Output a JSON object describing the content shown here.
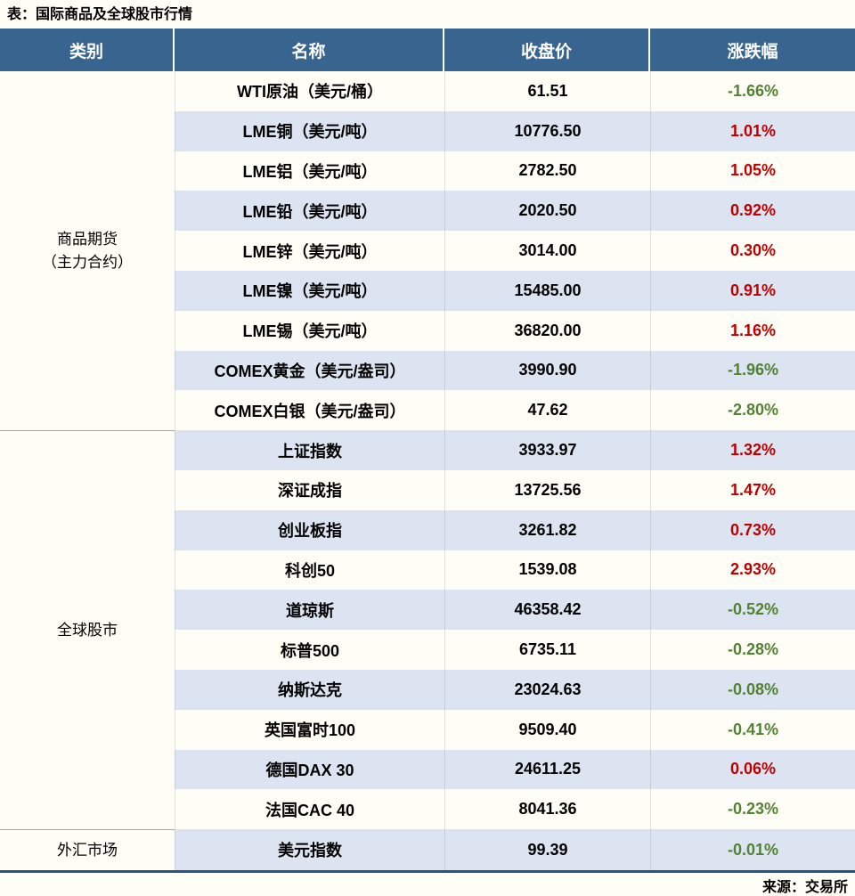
{
  "page": {
    "source": "来源：交易所"
  },
  "colors": {
    "header_bg": "#38658F",
    "stripe_bg": "#DBE4F0",
    "up_red": "#C00000",
    "down_green": "#548235",
    "table_bottom_border": "#2B5279",
    "page_bg": "#FFFEF6"
  },
  "chart_data": {
    "type": "table",
    "title": "表：国际商品及全球股市行情",
    "columns": [
      "类别",
      "名称",
      "收盘价",
      "涨跌幅"
    ],
    "sections": [
      {
        "category_lines": [
          "商品期货",
          "（主力合约）"
        ],
        "rows": [
          {
            "name": "WTI原油（美元/桶）",
            "close": "61.51",
            "change": "-1.66%",
            "direction": "down"
          },
          {
            "name": "LME铜（美元/吨）",
            "close": "10776.50",
            "change": "1.01%",
            "direction": "up"
          },
          {
            "name": "LME铝（美元/吨）",
            "close": "2782.50",
            "change": "1.05%",
            "direction": "up"
          },
          {
            "name": "LME铅（美元/吨）",
            "close": "2020.50",
            "change": "0.92%",
            "direction": "up"
          },
          {
            "name": "LME锌（美元/吨）",
            "close": "3014.00",
            "change": "0.30%",
            "direction": "up"
          },
          {
            "name": "LME镍（美元/吨）",
            "close": "15485.00",
            "change": "0.91%",
            "direction": "up"
          },
          {
            "name": "LME锡（美元/吨）",
            "close": "36820.00",
            "change": "1.16%",
            "direction": "up"
          },
          {
            "name": "COMEX黄金（美元/盎司）",
            "close": "3990.90",
            "change": "-1.96%",
            "direction": "down"
          },
          {
            "name": "COMEX白银（美元/盎司）",
            "close": "47.62",
            "change": "-2.80%",
            "direction": "down"
          }
        ]
      },
      {
        "category_lines": [
          "全球股市"
        ],
        "rows": [
          {
            "name": "上证指数",
            "close": "3933.97",
            "change": "1.32%",
            "direction": "up"
          },
          {
            "name": "深证成指",
            "close": "13725.56",
            "change": "1.47%",
            "direction": "up"
          },
          {
            "name": "创业板指",
            "close": "3261.82",
            "change": "0.73%",
            "direction": "up"
          },
          {
            "name": "科创50",
            "close": "1539.08",
            "change": "2.93%",
            "direction": "up"
          },
          {
            "name": "道琼斯",
            "close": "46358.42",
            "change": "-0.52%",
            "direction": "down"
          },
          {
            "name": "标普500",
            "close": "6735.11",
            "change": "-0.28%",
            "direction": "down"
          },
          {
            "name": "纳斯达克",
            "close": "23024.63",
            "change": "-0.08%",
            "direction": "down"
          },
          {
            "name": "英国富时100",
            "close": "9509.40",
            "change": "-0.41%",
            "direction": "down"
          },
          {
            "name": "德国DAX 30",
            "close": "24611.25",
            "change": "0.06%",
            "direction": "up"
          },
          {
            "name": "法国CAC 40",
            "close": "8041.36",
            "change": "-0.23%",
            "direction": "down"
          }
        ]
      },
      {
        "category_lines": [
          "外汇市场"
        ],
        "rows": [
          {
            "name": "美元指数",
            "close": "99.39",
            "change": "-0.01%",
            "direction": "down"
          }
        ]
      }
    ]
  }
}
